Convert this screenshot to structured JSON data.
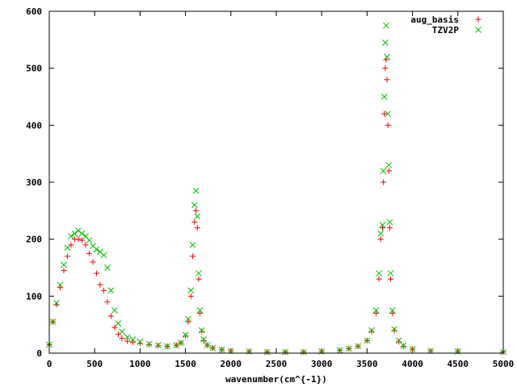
{
  "chart_data": {
    "type": "scatter",
    "title": "",
    "xlabel": "wavenumber(cm^{-1})",
    "ylabel": "",
    "xlim": [
      0,
      5000
    ],
    "ylim": [
      0,
      600
    ],
    "xticks": [
      0,
      500,
      1000,
      1500,
      2000,
      2500,
      3000,
      3500,
      4000,
      4500,
      5000
    ],
    "yticks": [
      0,
      100,
      200,
      300,
      400,
      500,
      600
    ],
    "grid": false,
    "legend_position": "top-right",
    "series": [
      {
        "name": "aug_basis",
        "marker": "plus",
        "color": "#ff0000",
        "x": [
          0,
          40,
          80,
          120,
          160,
          200,
          240,
          280,
          320,
          360,
          400,
          440,
          480,
          520,
          560,
          600,
          640,
          680,
          720,
          760,
          800,
          860,
          920,
          1000,
          1100,
          1200,
          1300,
          1400,
          1450,
          1500,
          1530,
          1560,
          1580,
          1600,
          1615,
          1630,
          1645,
          1660,
          1680,
          1700,
          1740,
          1800,
          1900,
          2000,
          2200,
          2400,
          2600,
          2800,
          3000,
          3200,
          3300,
          3400,
          3500,
          3550,
          3600,
          3630,
          3650,
          3670,
          3680,
          3690,
          3700,
          3710,
          3720,
          3730,
          3740,
          3750,
          3760,
          3780,
          3800,
          3850,
          3900,
          4000,
          4200,
          4500,
          5000
        ],
        "y": [
          15,
          55,
          85,
          115,
          145,
          170,
          190,
          200,
          200,
          198,
          190,
          175,
          160,
          140,
          120,
          110,
          90,
          65,
          45,
          33,
          26,
          21,
          19,
          17,
          15,
          13,
          12,
          14,
          18,
          30,
          55,
          100,
          170,
          230,
          250,
          220,
          130,
          70,
          38,
          22,
          14,
          9,
          6,
          4,
          3,
          2,
          2,
          2,
          3,
          5,
          8,
          12,
          22,
          38,
          70,
          130,
          200,
          220,
          300,
          420,
          500,
          515,
          480,
          400,
          320,
          220,
          130,
          70,
          40,
          20,
          12,
          7,
          4,
          3,
          2
        ]
      },
      {
        "name": "TZV2P",
        "marker": "x",
        "color": "#00c000",
        "x": [
          0,
          40,
          80,
          120,
          160,
          200,
          240,
          280,
          320,
          360,
          400,
          440,
          480,
          520,
          560,
          600,
          640,
          680,
          720,
          760,
          800,
          860,
          920,
          1000,
          1100,
          1200,
          1300,
          1400,
          1450,
          1500,
          1530,
          1560,
          1580,
          1600,
          1615,
          1630,
          1645,
          1660,
          1680,
          1700,
          1740,
          1800,
          1900,
          2000,
          2200,
          2400,
          2600,
          2800,
          3000,
          3200,
          3300,
          3400,
          3500,
          3550,
          3600,
          3630,
          3650,
          3670,
          3680,
          3690,
          3700,
          3710,
          3720,
          3730,
          3740,
          3750,
          3760,
          3780,
          3800,
          3850,
          3900,
          4000,
          4200,
          4500,
          5000
        ],
        "y": [
          15,
          55,
          88,
          120,
          155,
          185,
          205,
          210,
          215,
          210,
          205,
          198,
          188,
          182,
          178,
          172,
          150,
          110,
          75,
          52,
          38,
          28,
          24,
          20,
          16,
          14,
          12,
          14,
          18,
          32,
          60,
          110,
          190,
          260,
          285,
          240,
          140,
          75,
          40,
          24,
          14,
          9,
          6,
          4,
          3,
          2,
          2,
          2,
          3,
          5,
          8,
          12,
          22,
          40,
          75,
          140,
          210,
          225,
          320,
          450,
          545,
          575,
          520,
          420,
          330,
          230,
          140,
          75,
          42,
          22,
          13,
          7,
          4,
          3,
          2
        ]
      }
    ]
  }
}
